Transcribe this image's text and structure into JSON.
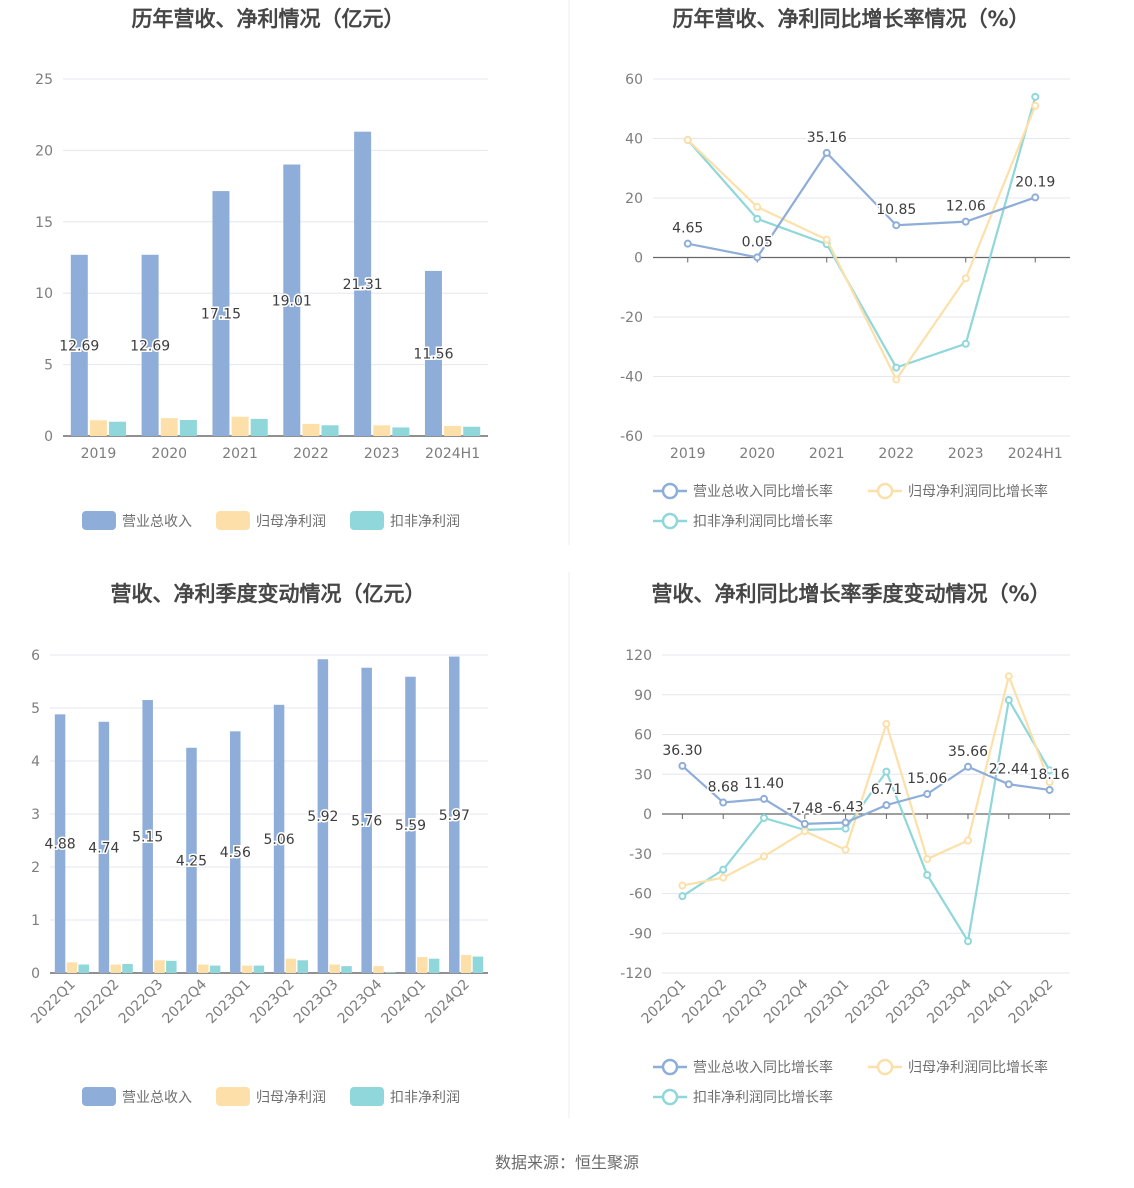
{
  "source": "数据来源：恒生聚源",
  "colors": {
    "revenue": "#8eadd9",
    "netprofit": "#fde0a9",
    "deducted": "#8fd7da"
  },
  "chart_data": [
    {
      "type": "bar",
      "title": "历年营收、净利情况（亿元）",
      "categories": [
        "2019",
        "2020",
        "2021",
        "2022",
        "2023",
        "2024H1"
      ],
      "ylim": [
        0,
        25
      ],
      "yticks": [
        0,
        5,
        10,
        15,
        20,
        25
      ],
      "series": [
        {
          "name": "营业总收入",
          "values": [
            12.69,
            12.69,
            17.15,
            19.01,
            21.31,
            11.56
          ],
          "labeled": true
        },
        {
          "name": "归母净利润",
          "values": [
            1.1,
            1.25,
            1.35,
            0.85,
            0.75,
            0.7
          ]
        },
        {
          "name": "扣非净利润",
          "values": [
            1.0,
            1.12,
            1.2,
            0.75,
            0.6,
            0.65
          ]
        }
      ],
      "labels": [
        "12.69",
        "12.69",
        "17.15",
        "19.01",
        "21.31",
        "11.56"
      ],
      "grid": true,
      "legend": "bottom"
    },
    {
      "type": "line",
      "title": "历年营收、净利同比增长率情况（%）",
      "categories": [
        "2019",
        "2020",
        "2021",
        "2022",
        "2023",
        "2024H1"
      ],
      "ylim": [
        -60,
        60
      ],
      "yticks": [
        -60,
        -40,
        -20,
        0,
        20,
        40,
        60
      ],
      "series": [
        {
          "name": "营业总收入同比增长率",
          "values": [
            4.65,
            0.05,
            35.16,
            10.85,
            12.06,
            20.19
          ],
          "labeled": true
        },
        {
          "name": "归母净利润同比增长率",
          "values": [
            39.5,
            17,
            6,
            -41,
            -7,
            51
          ]
        },
        {
          "name": "扣非净利润同比增长率",
          "values": [
            39.5,
            13,
            4.5,
            -37,
            -29,
            54
          ]
        }
      ],
      "labels": [
        "4.65",
        "0.05",
        "35.16",
        "10.85",
        "12.06",
        "20.19"
      ],
      "grid": true,
      "legend": "bottom"
    },
    {
      "type": "bar",
      "title": "营收、净利季度变动情况（亿元）",
      "categories": [
        "2022Q1",
        "2022Q2",
        "2022Q3",
        "2022Q4",
        "2023Q1",
        "2023Q2",
        "2023Q3",
        "2023Q4",
        "2024Q1",
        "2024Q2"
      ],
      "ylim": [
        0,
        6
      ],
      "yticks": [
        0,
        1,
        2,
        3,
        4,
        5,
        6
      ],
      "series": [
        {
          "name": "营业总收入",
          "values": [
            4.88,
            4.74,
            5.15,
            4.25,
            4.56,
            5.06,
            5.92,
            5.76,
            5.59,
            5.97
          ],
          "labeled": true
        },
        {
          "name": "归母净利润",
          "values": [
            0.2,
            0.16,
            0.24,
            0.16,
            0.14,
            0.27,
            0.16,
            0.13,
            0.3,
            0.34
          ]
        },
        {
          "name": "扣非净利润",
          "values": [
            0.16,
            0.17,
            0.23,
            0.14,
            0.14,
            0.24,
            0.13,
            0.01,
            0.27,
            0.31
          ]
        }
      ],
      "labels": [
        "4.88",
        "4.74",
        "5.15",
        "4.25",
        "4.56",
        "5.06",
        "5.92",
        "5.76",
        "5.59",
        "5.97"
      ],
      "grid": true,
      "legend": "bottom"
    },
    {
      "type": "line",
      "title": "营收、净利同比增长率季度变动情况（%）",
      "categories": [
        "2022Q1",
        "2022Q2",
        "2022Q3",
        "2022Q4",
        "2023Q1",
        "2023Q2",
        "2023Q3",
        "2023Q4",
        "2024Q1",
        "2024Q2"
      ],
      "ylim": [
        -120,
        120
      ],
      "yticks": [
        -120,
        -90,
        -60,
        -30,
        0,
        30,
        60,
        90,
        120
      ],
      "series": [
        {
          "name": "营业总收入同比增长率",
          "values": [
            36.3,
            8.68,
            11.4,
            -7.48,
            -6.43,
            6.71,
            15.06,
            35.66,
            22.44,
            18.16
          ],
          "labeled": true
        },
        {
          "name": "归母净利润同比增长率",
          "values": [
            -54,
            -48,
            -32,
            -13,
            -27,
            68,
            -34,
            -20,
            104,
            24
          ]
        },
        {
          "name": "扣非净利润同比增长率",
          "values": [
            -62,
            -42,
            -3,
            -12,
            -11,
            32,
            -46,
            -96,
            86,
            33
          ]
        }
      ],
      "labels": [
        "36.30",
        "8.68",
        "11.40",
        "-7.48",
        "-6.43",
        "6.71",
        "15.06",
        "35.66",
        "22.44",
        "18.16"
      ],
      "grid": true,
      "legend": "bottom"
    }
  ]
}
